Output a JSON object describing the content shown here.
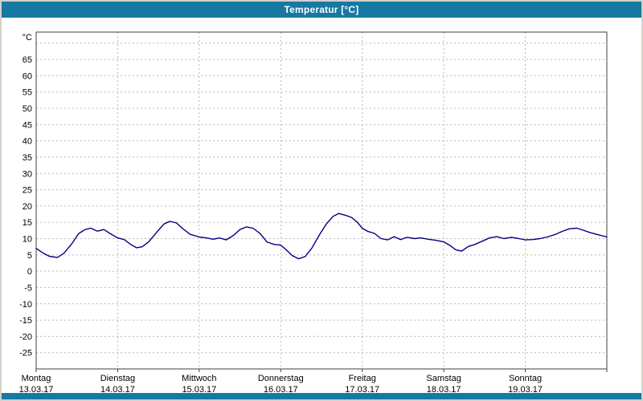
{
  "window": {
    "title": "Temperatur [°C]",
    "titlebar_color": "#1779a3",
    "background_color": "#ffffff"
  },
  "chart_data": {
    "type": "line",
    "title": "Temperatur [°C]",
    "ylabel": "°C",
    "grid": "dashed",
    "legend": "none",
    "y_axis": {
      "unit": "°C",
      "min": -25,
      "max": 65,
      "step": 5,
      "tick_labels": [
        65,
        60,
        55,
        50,
        45,
        40,
        35,
        30,
        25,
        20,
        15,
        10,
        5,
        0,
        -5,
        -10,
        -15,
        -20,
        -25
      ],
      "plot_range": [
        -30,
        73.4
      ]
    },
    "x_days": [
      {
        "name": "Montag",
        "date": "13.03.17"
      },
      {
        "name": "Dienstag",
        "date": "14.03.17"
      },
      {
        "name": "Mittwoch",
        "date": "15.03.17"
      },
      {
        "name": "Donnerstag",
        "date": "16.03.17"
      },
      {
        "name": "Freitag",
        "date": "17.03.17"
      },
      {
        "name": "Samstag",
        "date": "18.03.17"
      },
      {
        "name": "Sonntag",
        "date": "19.03.17"
      }
    ],
    "series": [
      {
        "name": "Temperatur",
        "color": "#000080",
        "points": [
          [
            0.0,
            7.0
          ],
          [
            0.09,
            5.5
          ],
          [
            0.16,
            4.6
          ],
          [
            0.26,
            4.2
          ],
          [
            0.34,
            5.5
          ],
          [
            0.44,
            8.5
          ],
          [
            0.52,
            11.5
          ],
          [
            0.6,
            12.8
          ],
          [
            0.67,
            13.2
          ],
          [
            0.75,
            12.3
          ],
          [
            0.83,
            12.8
          ],
          [
            0.91,
            11.5
          ],
          [
            1.0,
            10.2
          ],
          [
            1.08,
            9.7
          ],
          [
            1.16,
            8.2
          ],
          [
            1.23,
            7.2
          ],
          [
            1.3,
            7.5
          ],
          [
            1.38,
            9.0
          ],
          [
            1.48,
            12.0
          ],
          [
            1.57,
            14.5
          ],
          [
            1.64,
            15.3
          ],
          [
            1.72,
            14.8
          ],
          [
            1.8,
            13.0
          ],
          [
            1.89,
            11.3
          ],
          [
            2.0,
            10.5
          ],
          [
            2.09,
            10.2
          ],
          [
            2.17,
            9.8
          ],
          [
            2.25,
            10.2
          ],
          [
            2.33,
            9.6
          ],
          [
            2.42,
            11.0
          ],
          [
            2.5,
            12.8
          ],
          [
            2.58,
            13.6
          ],
          [
            2.66,
            13.2
          ],
          [
            2.75,
            11.5
          ],
          [
            2.83,
            9.0
          ],
          [
            2.92,
            8.2
          ],
          [
            3.0,
            8.0
          ],
          [
            3.07,
            6.5
          ],
          [
            3.14,
            4.8
          ],
          [
            3.22,
            3.8
          ],
          [
            3.3,
            4.5
          ],
          [
            3.38,
            7.0
          ],
          [
            3.47,
            11.0
          ],
          [
            3.56,
            14.5
          ],
          [
            3.64,
            16.8
          ],
          [
            3.71,
            17.7
          ],
          [
            3.79,
            17.2
          ],
          [
            3.87,
            16.5
          ],
          [
            3.94,
            15.0
          ],
          [
            4.0,
            13.2
          ],
          [
            4.07,
            12.2
          ],
          [
            4.15,
            11.6
          ],
          [
            4.23,
            10.0
          ],
          [
            4.31,
            9.6
          ],
          [
            4.39,
            10.6
          ],
          [
            4.47,
            9.7
          ],
          [
            4.55,
            10.4
          ],
          [
            4.64,
            10.0
          ],
          [
            4.72,
            10.2
          ],
          [
            4.81,
            9.8
          ],
          [
            4.9,
            9.5
          ],
          [
            5.0,
            9.0
          ],
          [
            5.07,
            8.0
          ],
          [
            5.15,
            6.5
          ],
          [
            5.22,
            6.2
          ],
          [
            5.3,
            7.6
          ],
          [
            5.38,
            8.2
          ],
          [
            5.47,
            9.2
          ],
          [
            5.56,
            10.2
          ],
          [
            5.65,
            10.6
          ],
          [
            5.74,
            10.0
          ],
          [
            5.83,
            10.4
          ],
          [
            5.92,
            10.0
          ],
          [
            6.0,
            9.6
          ],
          [
            6.09,
            9.7
          ],
          [
            6.18,
            10.0
          ],
          [
            6.27,
            10.5
          ],
          [
            6.36,
            11.2
          ],
          [
            6.45,
            12.2
          ],
          [
            6.54,
            13.0
          ],
          [
            6.63,
            13.2
          ],
          [
            6.71,
            12.6
          ],
          [
            6.8,
            11.8
          ],
          [
            6.89,
            11.2
          ],
          [
            7.0,
            10.5
          ]
        ]
      }
    ]
  },
  "style": {
    "grid_color": "#b8b8b8",
    "border_color": "#404040",
    "text_color": "#000000"
  }
}
